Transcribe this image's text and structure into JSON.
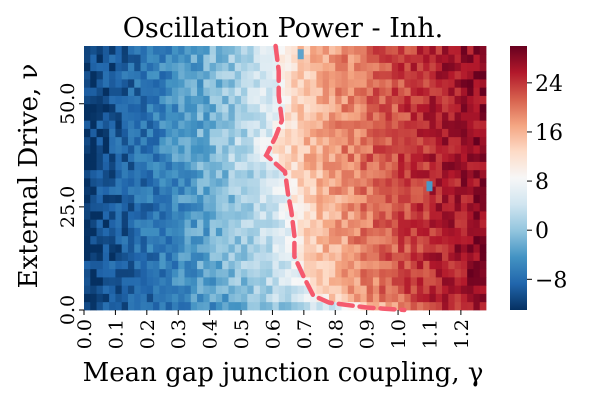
{
  "chart_data": {
    "type": "heatmap",
    "title": "Oscillation Power - Inh.",
    "xlabel": "Mean gap junction coupling, γ",
    "ylabel": "External Drive, ν",
    "x_range": [
      0.0,
      1.28
    ],
    "y_range": [
      0.0,
      64.0
    ],
    "x_ticks": [
      0.0,
      0.1,
      0.2,
      0.3,
      0.4,
      0.5,
      0.6,
      0.7,
      0.8,
      0.9,
      1.0,
      1.1,
      1.2
    ],
    "x_tick_labels": [
      "0.0",
      "0.1",
      "0.2",
      "0.3",
      "0.4",
      "0.5",
      "0.6",
      "0.7",
      "0.8",
      "0.9",
      "1.0",
      "1.1",
      "1.2"
    ],
    "y_ticks": [
      0.0,
      25.0,
      50.0
    ],
    "y_tick_labels": [
      "0.0",
      "25.0",
      "50.0"
    ],
    "colorbar": {
      "range": [
        -13,
        30
      ],
      "ticks": [
        -8,
        0,
        8,
        16,
        24
      ],
      "tick_labels": [
        "−8",
        "0",
        "8",
        "16",
        "24"
      ],
      "colormap": "RdBu_r",
      "stops": [
        "#053061",
        "#2166ac",
        "#4393c3",
        "#92c5de",
        "#d1e5f0",
        "#f7f7f7",
        "#fddbc7",
        "#f4a582",
        "#d6604d",
        "#b2182b",
        "#67001f"
      ]
    },
    "grid": false,
    "contour_line": {
      "color": "#f55a6e",
      "style": "dashed",
      "points": [
        [
          0.61,
          64.0
        ],
        [
          0.62,
          58.0
        ],
        [
          0.62,
          52.0
        ],
        [
          0.63,
          46.0
        ],
        [
          0.61,
          42.0
        ],
        [
          0.58,
          37.5
        ],
        [
          0.64,
          33.5
        ],
        [
          0.65,
          28.0
        ],
        [
          0.66,
          24.0
        ],
        [
          0.67,
          18.0
        ],
        [
          0.67,
          13.0
        ],
        [
          0.7,
          8.0
        ],
        [
          0.73,
          3.5
        ],
        [
          0.78,
          1.8
        ],
        [
          0.9,
          0.6
        ],
        [
          1.02,
          0.0
        ]
      ]
    },
    "anomalies": [
      {
        "x": 0.69,
        "y": 62.0,
        "value": 3
      },
      {
        "x": 1.1,
        "y": 30.0,
        "value": 2
      }
    ]
  }
}
